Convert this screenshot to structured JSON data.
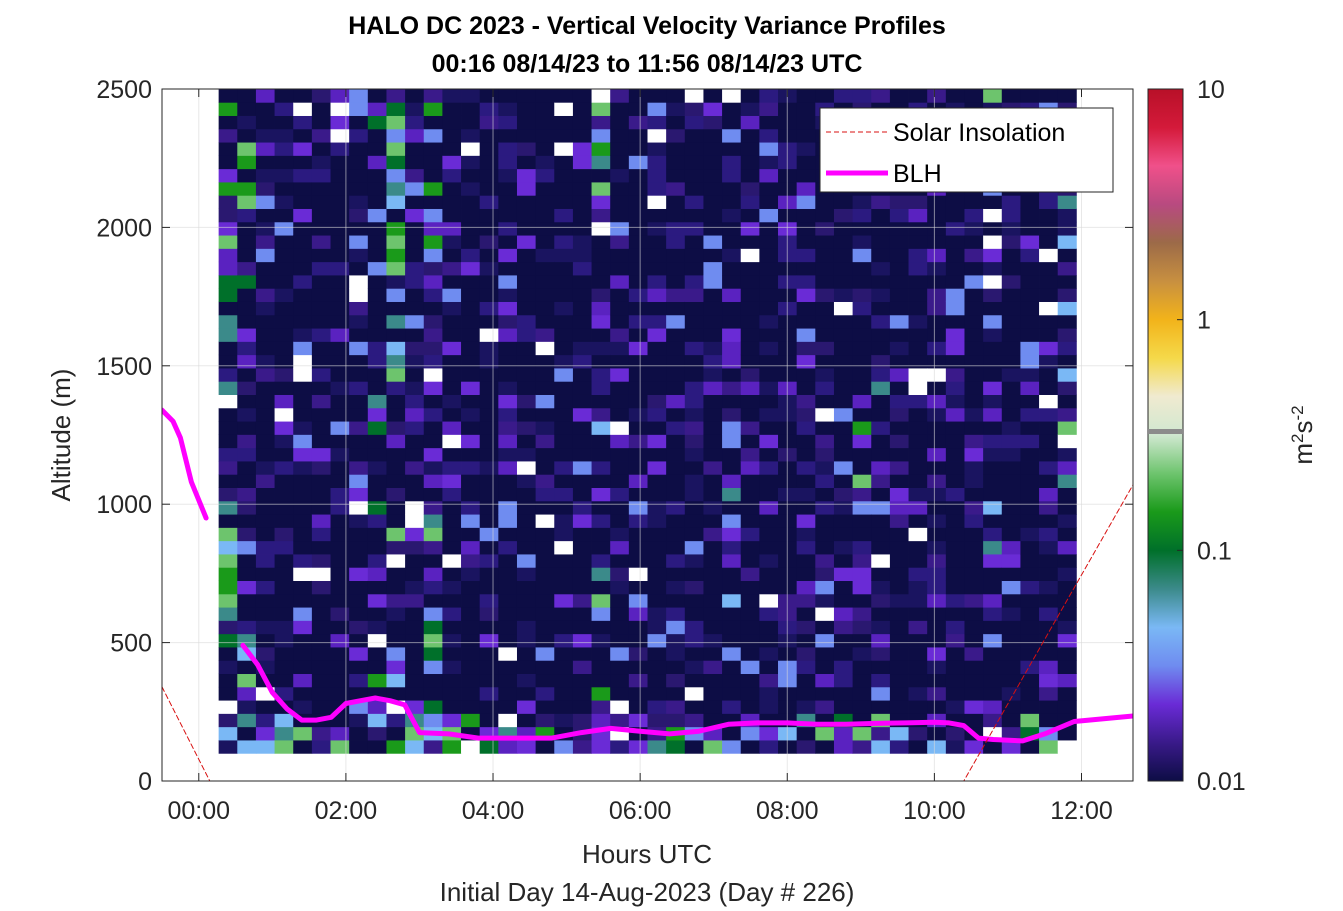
{
  "chart_data": {
    "type": "heatmap",
    "title": "HALO DC 2023 - Vertical Velocity Variance Profiles",
    "subtitle": "00:16 08/14/23 to 11:56 08/14/23  UTC",
    "xlabel": "Hours UTC",
    "xlabel2": "Initial Day 14-Aug-2023 (Day # 226)",
    "ylabel": "Altitude (m)",
    "xlim": [
      -0.5,
      12.7
    ],
    "ylim": [
      0,
      2500
    ],
    "x_ticks": [
      0,
      2,
      4,
      6,
      8,
      10,
      12
    ],
    "x_tick_labels": [
      "00:00",
      "02:00",
      "04:00",
      "06:00",
      "08:00",
      "10:00",
      "12:00"
    ],
    "y_ticks": [
      0,
      500,
      1000,
      1500,
      2000,
      2500
    ],
    "y_tick_labels": [
      "0",
      "500",
      "1000",
      "1500",
      "2000",
      "2500"
    ],
    "colorbar": {
      "label": "m2s-2",
      "scale": "log",
      "min": 0.01,
      "max": 10,
      "ticks": [
        0.01,
        0.1,
        1,
        10
      ],
      "tick_labels": [
        "0.01",
        "0.1",
        "1",
        "10"
      ],
      "colors": [
        "#0d0d45",
        "#3a1a8a",
        "#6a2bd6",
        "#6f8cf0",
        "#7ab8f5",
        "#3b8a8a",
        "#00702a",
        "#1a9a1a",
        "#6dc46d",
        "#d0e8d0",
        "#f0ead0",
        "#f5d94a",
        "#f2b31a",
        "#c89040",
        "#9c6a48",
        "#b84a80",
        "#f0508a",
        "#d41a3a",
        "#b81028"
      ]
    },
    "grid": true,
    "legend": {
      "position": "top-right",
      "entries": [
        "Solar Insolation",
        "BLH"
      ]
    },
    "data_extent": {
      "x_start": 0.27,
      "x_end": 11.93,
      "y_start": 100,
      "y_end": 2500
    },
    "series": [
      {
        "name": "BLH",
        "color": "#ff00ff",
        "segments": [
          {
            "x": [
              -0.5,
              -0.35,
              -0.25,
              -0.1,
              0.1
            ],
            "y": [
              1340,
              1300,
              1240,
              1080,
              950
            ]
          },
          {
            "x": [
              0.6,
              0.8,
              1.0,
              1.2,
              1.4,
              1.6,
              1.8,
              2.0,
              2.2,
              2.4,
              2.6,
              2.8,
              3.0,
              3.4,
              3.8,
              4.2,
              4.8,
              5.2,
              5.6,
              6.0,
              6.4,
              6.8,
              7.2,
              7.6,
              8.0,
              8.4,
              8.8,
              9.2,
              9.6,
              10.0,
              10.2,
              10.4,
              10.6,
              10.8,
              11.2,
              11.5,
              11.9,
              12.3,
              12.7
            ],
            "y": [
              490,
              420,
              320,
              260,
              220,
              220,
              230,
              280,
              290,
              300,
              290,
              275,
              175,
              170,
              155,
              155,
              155,
              175,
              190,
              180,
              170,
              180,
              205,
              210,
              210,
              205,
              205,
              208,
              210,
              212,
              210,
              200,
              155,
              150,
              145,
              170,
              215,
              225,
              235
            ]
          }
        ]
      },
      {
        "name": "Solar Insolation",
        "color": "#d81010",
        "segments": [
          {
            "x": [
              -0.5,
              0.15,
              10.4,
              12.7
            ],
            "y": [
              340,
              0,
              0,
              1070
            ]
          }
        ]
      }
    ]
  }
}
